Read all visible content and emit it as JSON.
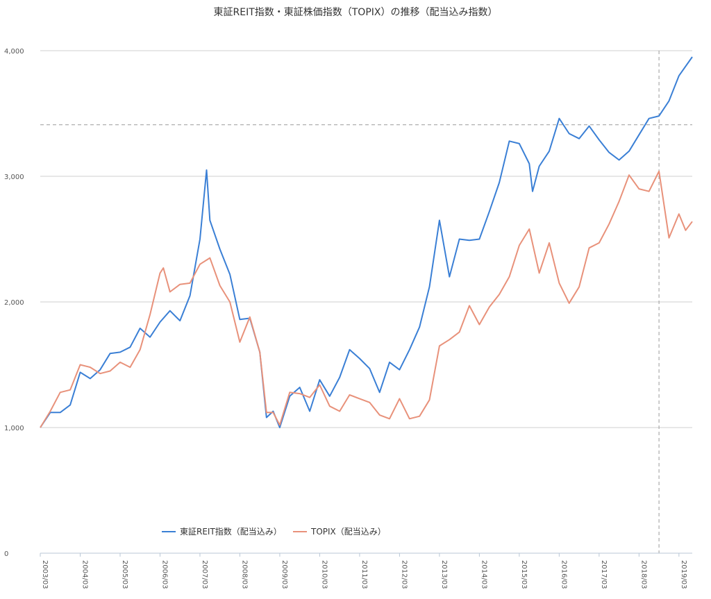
{
  "chart_data": {
    "type": "line",
    "title": "東証REIT指数・東証株価指数（TOPIX）の推移（配当込み指数）",
    "xlabel": "",
    "ylabel": "",
    "ylim": [
      0,
      4000
    ],
    "yticks": [
      0,
      1000,
      2000,
      3000,
      4000
    ],
    "ytick_labels": [
      "0",
      "1,000",
      "2,000",
      "3,000",
      "4,000"
    ],
    "xtick_labels": [
      "2003/03",
      "2004/03",
      "2005/03",
      "2006/03",
      "2007/03",
      "2008/03",
      "2009/03",
      "2010/03",
      "2011/03",
      "2012/03",
      "2013/03",
      "2014/03",
      "2015/03",
      "2016/03",
      "2017/03",
      "2018/03",
      "2019/03"
    ],
    "x_range": [
      "2003-03",
      "2019-07"
    ],
    "grid": true,
    "legend_position": "bottom",
    "reference_lines": [
      {
        "orientation": "horizontal",
        "value": 3410,
        "style": "dashed"
      },
      {
        "orientation": "vertical",
        "x": "2018-09",
        "style": "dashed"
      }
    ],
    "series": [
      {
        "name": "東証REIT指数（配当込み）",
        "color": "#3a7fd5",
        "points": [
          [
            "2003-03",
            1000
          ],
          [
            "2003-06",
            1120
          ],
          [
            "2003-09",
            1120
          ],
          [
            "2003-12",
            1180
          ],
          [
            "2004-03",
            1440
          ],
          [
            "2004-06",
            1390
          ],
          [
            "2004-09",
            1460
          ],
          [
            "2004-12",
            1590
          ],
          [
            "2005-03",
            1600
          ],
          [
            "2005-06",
            1640
          ],
          [
            "2005-09",
            1790
          ],
          [
            "2005-12",
            1720
          ],
          [
            "2006-03",
            1840
          ],
          [
            "2006-06",
            1930
          ],
          [
            "2006-09",
            1850
          ],
          [
            "2006-12",
            2050
          ],
          [
            "2007-03",
            2500
          ],
          [
            "2007-05",
            3050
          ],
          [
            "2007-06",
            2650
          ],
          [
            "2007-09",
            2420
          ],
          [
            "2007-12",
            2220
          ],
          [
            "2008-03",
            1860
          ],
          [
            "2008-06",
            1870
          ],
          [
            "2008-09",
            1600
          ],
          [
            "2008-11",
            1080
          ],
          [
            "2009-01",
            1130
          ],
          [
            "2009-03",
            1000
          ],
          [
            "2009-06",
            1250
          ],
          [
            "2009-09",
            1320
          ],
          [
            "2009-12",
            1130
          ],
          [
            "2010-03",
            1380
          ],
          [
            "2010-06",
            1250
          ],
          [
            "2010-09",
            1400
          ],
          [
            "2010-12",
            1620
          ],
          [
            "2011-03",
            1550
          ],
          [
            "2011-06",
            1470
          ],
          [
            "2011-09",
            1280
          ],
          [
            "2011-12",
            1520
          ],
          [
            "2012-03",
            1460
          ],
          [
            "2012-06",
            1620
          ],
          [
            "2012-09",
            1800
          ],
          [
            "2012-12",
            2120
          ],
          [
            "2013-03",
            2650
          ],
          [
            "2013-06",
            2200
          ],
          [
            "2013-09",
            2500
          ],
          [
            "2013-12",
            2490
          ],
          [
            "2014-03",
            2500
          ],
          [
            "2014-06",
            2720
          ],
          [
            "2014-09",
            2950
          ],
          [
            "2014-12",
            3280
          ],
          [
            "2015-03",
            3260
          ],
          [
            "2015-06",
            3100
          ],
          [
            "2015-07",
            2880
          ],
          [
            "2015-09",
            3080
          ],
          [
            "2015-12",
            3200
          ],
          [
            "2016-03",
            3460
          ],
          [
            "2016-06",
            3340
          ],
          [
            "2016-09",
            3300
          ],
          [
            "2016-12",
            3400
          ],
          [
            "2017-03",
            3290
          ],
          [
            "2017-06",
            3190
          ],
          [
            "2017-09",
            3130
          ],
          [
            "2017-12",
            3200
          ],
          [
            "2018-03",
            3330
          ],
          [
            "2018-06",
            3460
          ],
          [
            "2018-09",
            3480
          ],
          [
            "2018-12",
            3600
          ],
          [
            "2019-03",
            3800
          ],
          [
            "2019-07",
            3950
          ]
        ]
      },
      {
        "name": "TOPIX（配当込み）",
        "color": "#e8917a",
        "points": [
          [
            "2003-03",
            1000
          ],
          [
            "2003-06",
            1130
          ],
          [
            "2003-09",
            1280
          ],
          [
            "2003-12",
            1300
          ],
          [
            "2004-03",
            1500
          ],
          [
            "2004-06",
            1480
          ],
          [
            "2004-09",
            1430
          ],
          [
            "2004-12",
            1450
          ],
          [
            "2005-03",
            1520
          ],
          [
            "2005-06",
            1480
          ],
          [
            "2005-09",
            1620
          ],
          [
            "2005-12",
            1900
          ],
          [
            "2006-03",
            2230
          ],
          [
            "2006-04",
            2270
          ],
          [
            "2006-06",
            2080
          ],
          [
            "2006-09",
            2140
          ],
          [
            "2006-12",
            2150
          ],
          [
            "2007-03",
            2300
          ],
          [
            "2007-06",
            2350
          ],
          [
            "2007-09",
            2130
          ],
          [
            "2007-12",
            2000
          ],
          [
            "2008-03",
            1680
          ],
          [
            "2008-06",
            1880
          ],
          [
            "2008-09",
            1600
          ],
          [
            "2008-11",
            1120
          ],
          [
            "2009-01",
            1120
          ],
          [
            "2009-03",
            1020
          ],
          [
            "2009-06",
            1280
          ],
          [
            "2009-09",
            1270
          ],
          [
            "2009-12",
            1240
          ],
          [
            "2010-03",
            1340
          ],
          [
            "2010-06",
            1170
          ],
          [
            "2010-09",
            1130
          ],
          [
            "2010-12",
            1260
          ],
          [
            "2011-03",
            1230
          ],
          [
            "2011-06",
            1200
          ],
          [
            "2011-09",
            1100
          ],
          [
            "2011-12",
            1070
          ],
          [
            "2012-03",
            1230
          ],
          [
            "2012-06",
            1070
          ],
          [
            "2012-09",
            1090
          ],
          [
            "2012-12",
            1220
          ],
          [
            "2013-03",
            1650
          ],
          [
            "2013-06",
            1700
          ],
          [
            "2013-09",
            1760
          ],
          [
            "2013-12",
            1970
          ],
          [
            "2014-03",
            1820
          ],
          [
            "2014-06",
            1960
          ],
          [
            "2014-09",
            2060
          ],
          [
            "2014-12",
            2200
          ],
          [
            "2015-03",
            2450
          ],
          [
            "2015-06",
            2580
          ],
          [
            "2015-09",
            2230
          ],
          [
            "2015-12",
            2470
          ],
          [
            "2016-03",
            2150
          ],
          [
            "2016-06",
            1990
          ],
          [
            "2016-09",
            2120
          ],
          [
            "2016-12",
            2430
          ],
          [
            "2017-03",
            2470
          ],
          [
            "2017-06",
            2620
          ],
          [
            "2017-09",
            2800
          ],
          [
            "2017-12",
            3010
          ],
          [
            "2018-03",
            2900
          ],
          [
            "2018-06",
            2880
          ],
          [
            "2018-09",
            3040
          ],
          [
            "2018-12",
            2510
          ],
          [
            "2019-03",
            2700
          ],
          [
            "2019-05",
            2570
          ],
          [
            "2019-07",
            2640
          ]
        ]
      }
    ]
  }
}
